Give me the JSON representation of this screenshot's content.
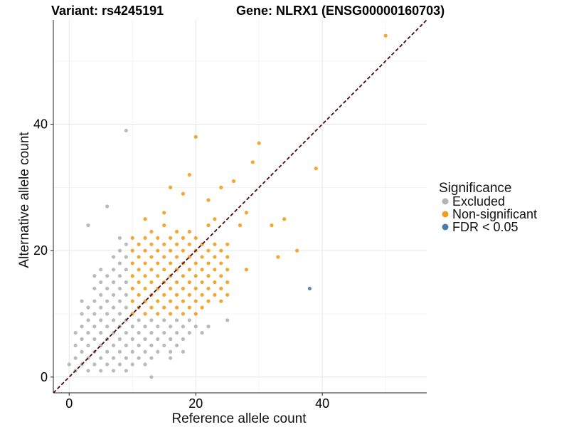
{
  "chart_data": {
    "type": "scatter",
    "title_left": "Variant: rs4245191",
    "title_right": "Gene: NLRX1 (ENSG00000160703)",
    "xlabel": "Reference allele count",
    "ylabel": "Alternative allele count",
    "xlim": [
      -2.5,
      56.5
    ],
    "ylim": [
      -2.5,
      56.5
    ],
    "x_ticks": [
      0,
      20,
      40
    ],
    "y_ticks": [
      0,
      20,
      40
    ],
    "grid": true,
    "reference_line": {
      "type": "diagonal",
      "slope": 1,
      "intercept": 0,
      "style": "dashed",
      "color": "#4b0a14"
    },
    "legend": {
      "title": "Significance",
      "position": "right",
      "entries": [
        {
          "label": "Excluded",
          "color": "#b3b3b3"
        },
        {
          "label": "Non-significant",
          "color": "#f39c1c"
        },
        {
          "label": "FDR < 0.05",
          "color": "#4a7ab0"
        }
      ]
    },
    "series": [
      {
        "name": "Excluded",
        "color": "#b3b3b3",
        "points": [
          [
            0,
            2
          ],
          [
            1,
            1
          ],
          [
            1,
            3
          ],
          [
            1,
            5
          ],
          [
            1,
            7
          ],
          [
            2,
            2
          ],
          [
            2,
            4
          ],
          [
            2,
            6
          ],
          [
            2,
            8
          ],
          [
            2,
            10
          ],
          [
            2,
            12
          ],
          [
            3,
            1
          ],
          [
            3,
            3
          ],
          [
            3,
            5
          ],
          [
            3,
            7
          ],
          [
            3,
            9
          ],
          [
            3,
            11
          ],
          [
            3,
            24
          ],
          [
            4,
            2
          ],
          [
            4,
            4
          ],
          [
            4,
            6
          ],
          [
            4,
            8
          ],
          [
            4,
            10
          ],
          [
            4,
            12
          ],
          [
            4,
            14
          ],
          [
            4,
            16
          ],
          [
            5,
            1
          ],
          [
            5,
            3
          ],
          [
            5,
            5
          ],
          [
            5,
            7
          ],
          [
            5,
            9
          ],
          [
            5,
            11
          ],
          [
            5,
            13
          ],
          [
            5,
            15
          ],
          [
            5,
            17
          ],
          [
            6,
            2
          ],
          [
            6,
            4
          ],
          [
            6,
            6
          ],
          [
            6,
            8
          ],
          [
            6,
            10
          ],
          [
            6,
            12
          ],
          [
            6,
            14
          ],
          [
            6,
            16
          ],
          [
            6,
            27
          ],
          [
            7,
            1
          ],
          [
            7,
            3
          ],
          [
            7,
            5
          ],
          [
            7,
            7
          ],
          [
            7,
            9
          ],
          [
            7,
            11
          ],
          [
            7,
            13
          ],
          [
            7,
            15
          ],
          [
            7,
            17
          ],
          [
            7,
            19
          ],
          [
            8,
            2
          ],
          [
            8,
            4
          ],
          [
            8,
            6
          ],
          [
            8,
            8
          ],
          [
            8,
            10
          ],
          [
            8,
            12
          ],
          [
            8,
            14
          ],
          [
            8,
            16
          ],
          [
            8,
            18
          ],
          [
            8,
            20
          ],
          [
            8,
            22
          ],
          [
            9,
            1
          ],
          [
            9,
            3
          ],
          [
            9,
            5
          ],
          [
            9,
            7
          ],
          [
            9,
            9
          ],
          [
            9,
            11
          ],
          [
            9,
            13
          ],
          [
            9,
            15
          ],
          [
            9,
            17
          ],
          [
            9,
            19
          ],
          [
            9,
            21
          ],
          [
            9,
            39
          ],
          [
            10,
            2
          ],
          [
            10,
            4
          ],
          [
            10,
            6
          ],
          [
            10,
            8
          ],
          [
            11,
            3
          ],
          [
            11,
            5
          ],
          [
            11,
            7
          ],
          [
            11,
            9
          ],
          [
            12,
            2
          ],
          [
            12,
            4
          ],
          [
            12,
            6
          ],
          [
            12,
            8
          ],
          [
            13,
            3
          ],
          [
            13,
            5
          ],
          [
            13,
            7
          ],
          [
            13,
            9
          ],
          [
            14,
            4
          ],
          [
            14,
            6
          ],
          [
            14,
            8
          ],
          [
            15,
            5
          ],
          [
            15,
            7
          ],
          [
            15,
            9
          ],
          [
            16,
            4
          ],
          [
            16,
            6
          ],
          [
            16,
            8
          ],
          [
            17,
            5
          ],
          [
            17,
            7
          ],
          [
            17,
            9
          ],
          [
            18,
            6
          ],
          [
            18,
            8
          ],
          [
            19,
            7
          ],
          [
            19,
            9
          ],
          [
            20,
            8
          ],
          [
            21,
            7
          ],
          [
            22,
            8
          ],
          [
            25,
            9
          ],
          [
            13,
            0
          ],
          [
            16,
            3
          ],
          [
            18,
            4
          ]
        ]
      },
      {
        "name": "Non-significant",
        "color": "#f39c1c",
        "points": [
          [
            10,
            10
          ],
          [
            10,
            12
          ],
          [
            10,
            14
          ],
          [
            10,
            16
          ],
          [
            10,
            18
          ],
          [
            10,
            20
          ],
          [
            10,
            22
          ],
          [
            11,
            11
          ],
          [
            11,
            13
          ],
          [
            11,
            15
          ],
          [
            11,
            17
          ],
          [
            11,
            19
          ],
          [
            11,
            21
          ],
          [
            12,
            10
          ],
          [
            12,
            12
          ],
          [
            12,
            14
          ],
          [
            12,
            16
          ],
          [
            12,
            18
          ],
          [
            12,
            20
          ],
          [
            12,
            22
          ],
          [
            12,
            25
          ],
          [
            13,
            11
          ],
          [
            13,
            13
          ],
          [
            13,
            15
          ],
          [
            13,
            17
          ],
          [
            13,
            19
          ],
          [
            13,
            21
          ],
          [
            13,
            23
          ],
          [
            14,
            10
          ],
          [
            14,
            12
          ],
          [
            14,
            14
          ],
          [
            14,
            16
          ],
          [
            14,
            18
          ],
          [
            14,
            20
          ],
          [
            14,
            22
          ],
          [
            15,
            11
          ],
          [
            15,
            13
          ],
          [
            15,
            15
          ],
          [
            15,
            17
          ],
          [
            15,
            19
          ],
          [
            15,
            21
          ],
          [
            15,
            24
          ],
          [
            15,
            26
          ],
          [
            16,
            10
          ],
          [
            16,
            12
          ],
          [
            16,
            14
          ],
          [
            16,
            16
          ],
          [
            16,
            18
          ],
          [
            16,
            20
          ],
          [
            16,
            22
          ],
          [
            16,
            30
          ],
          [
            17,
            11
          ],
          [
            17,
            13
          ],
          [
            17,
            15
          ],
          [
            17,
            17
          ],
          [
            17,
            19
          ],
          [
            17,
            21
          ],
          [
            17,
            23
          ],
          [
            18,
            10
          ],
          [
            18,
            12
          ],
          [
            18,
            14
          ],
          [
            18,
            16
          ],
          [
            18,
            18
          ],
          [
            18,
            20
          ],
          [
            18,
            22
          ],
          [
            18,
            29
          ],
          [
            19,
            11
          ],
          [
            19,
            13
          ],
          [
            19,
            15
          ],
          [
            19,
            17
          ],
          [
            19,
            19
          ],
          [
            19,
            21
          ],
          [
            19,
            23
          ],
          [
            19,
            32
          ],
          [
            20,
            10
          ],
          [
            20,
            12
          ],
          [
            20,
            14
          ],
          [
            20,
            16
          ],
          [
            20,
            18
          ],
          [
            20,
            20
          ],
          [
            20,
            22
          ],
          [
            20,
            38
          ],
          [
            21,
            11
          ],
          [
            21,
            13
          ],
          [
            21,
            15
          ],
          [
            21,
            17
          ],
          [
            21,
            19
          ],
          [
            21,
            21
          ],
          [
            22,
            12
          ],
          [
            22,
            14
          ],
          [
            22,
            16
          ],
          [
            22,
            18
          ],
          [
            22,
            20
          ],
          [
            22,
            24
          ],
          [
            22,
            28
          ],
          [
            23,
            13
          ],
          [
            23,
            15
          ],
          [
            23,
            17
          ],
          [
            23,
            19
          ],
          [
            23,
            21
          ],
          [
            23,
            25
          ],
          [
            24,
            12
          ],
          [
            24,
            14
          ],
          [
            24,
            16
          ],
          [
            24,
            18
          ],
          [
            24,
            20
          ],
          [
            24,
            30
          ],
          [
            25,
            13
          ],
          [
            25,
            15
          ],
          [
            25,
            17
          ],
          [
            25,
            19
          ],
          [
            25,
            21
          ],
          [
            26,
            31
          ],
          [
            27,
            24
          ],
          [
            28,
            17
          ],
          [
            28,
            26
          ],
          [
            29,
            34
          ],
          [
            30,
            37
          ],
          [
            32,
            24
          ],
          [
            33,
            19
          ],
          [
            34,
            25
          ],
          [
            36,
            20
          ],
          [
            39,
            33
          ],
          [
            50,
            54
          ]
        ]
      },
      {
        "name": "FDR < 0.05",
        "color": "#4a7ab0",
        "points": [
          [
            38,
            14
          ]
        ]
      }
    ]
  }
}
